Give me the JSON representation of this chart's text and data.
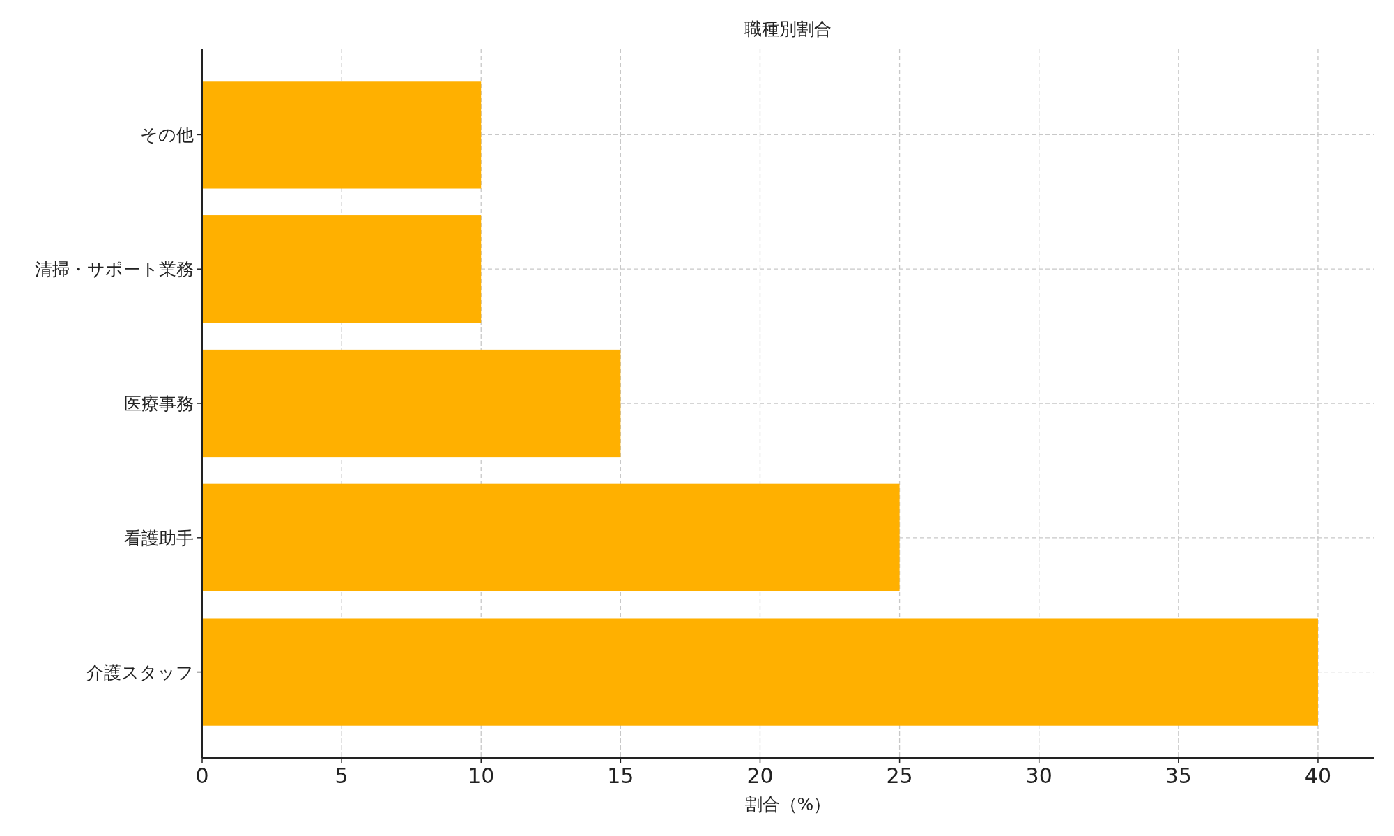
{
  "chart_data": {
    "type": "bar",
    "orientation": "horizontal",
    "title": "職種別割合",
    "xlabel": "割合（%）",
    "categories": [
      "その他",
      "清掃・サポート業務",
      "医療事務",
      "看護助手",
      "介護スタッフ"
    ],
    "values": [
      10,
      10,
      15,
      25,
      40
    ],
    "color": "#ffb000",
    "xlim": [
      0,
      42
    ],
    "xticks": [
      0,
      5,
      10,
      15,
      20,
      25,
      30,
      35,
      40
    ],
    "grid": true
  }
}
